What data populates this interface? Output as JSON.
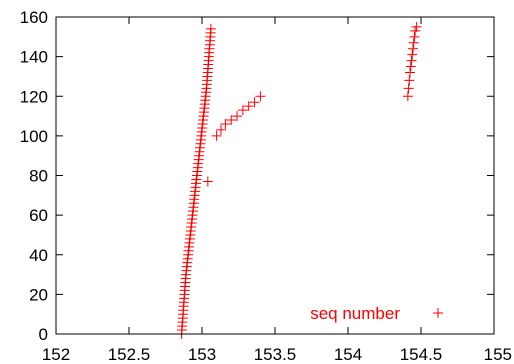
{
  "chart_data": {
    "type": "scatter",
    "title": "",
    "xlabel": "",
    "ylabel": "",
    "xlim": [
      152,
      155
    ],
    "ylim": [
      0,
      160
    ],
    "xticks": [
      "152",
      "152.5",
      "153",
      "153.5",
      "154",
      "154.5",
      "155"
    ],
    "yticks": [
      "0",
      "20",
      "40",
      "60",
      "80",
      "100",
      "120",
      "140",
      "160"
    ],
    "grid": false,
    "legend_position": "bottom-right",
    "series": [
      {
        "name": "seq number",
        "color": "#ff0000",
        "marker": "plus",
        "points": [
          [
            152.86,
            0
          ],
          [
            152.862,
            2
          ],
          [
            152.864,
            4
          ],
          [
            152.866,
            6
          ],
          [
            152.868,
            8
          ],
          [
            152.87,
            10
          ],
          [
            152.872,
            12
          ],
          [
            152.874,
            14
          ],
          [
            152.876,
            16
          ],
          [
            152.878,
            18
          ],
          [
            152.88,
            20
          ],
          [
            152.882,
            22
          ],
          [
            152.884,
            24
          ],
          [
            152.886,
            26
          ],
          [
            152.888,
            28
          ],
          [
            152.89,
            30
          ],
          [
            152.893,
            32
          ],
          [
            152.896,
            34
          ],
          [
            152.899,
            36
          ],
          [
            152.902,
            38
          ],
          [
            152.905,
            40
          ],
          [
            152.908,
            42
          ],
          [
            152.911,
            44
          ],
          [
            152.914,
            46
          ],
          [
            152.917,
            48
          ],
          [
            152.92,
            50
          ],
          [
            152.923,
            52
          ],
          [
            152.926,
            54
          ],
          [
            152.929,
            56
          ],
          [
            152.932,
            58
          ],
          [
            152.935,
            60
          ],
          [
            152.938,
            62
          ],
          [
            152.941,
            64
          ],
          [
            152.944,
            66
          ],
          [
            152.947,
            68
          ],
          [
            152.95,
            70
          ],
          [
            152.953,
            72
          ],
          [
            152.956,
            74
          ],
          [
            152.959,
            76
          ],
          [
            152.962,
            78
          ],
          [
            152.965,
            80
          ],
          [
            152.968,
            82
          ],
          [
            152.971,
            84
          ],
          [
            152.974,
            86
          ],
          [
            152.977,
            88
          ],
          [
            152.98,
            90
          ],
          [
            152.983,
            92
          ],
          [
            152.986,
            94
          ],
          [
            152.989,
            96
          ],
          [
            152.992,
            98
          ],
          [
            152.995,
            100
          ],
          [
            152.998,
            102
          ],
          [
            153.001,
            104
          ],
          [
            153.004,
            106
          ],
          [
            153.007,
            108
          ],
          [
            153.01,
            110
          ],
          [
            153.013,
            112
          ],
          [
            153.016,
            114
          ],
          [
            153.019,
            116
          ],
          [
            153.022,
            118
          ],
          [
            153.025,
            120
          ],
          [
            153.028,
            122
          ],
          [
            153.031,
            124
          ],
          [
            153.033,
            126
          ],
          [
            153.035,
            128
          ],
          [
            153.037,
            130
          ],
          [
            153.039,
            132
          ],
          [
            153.041,
            134
          ],
          [
            153.043,
            136
          ],
          [
            153.045,
            138
          ],
          [
            153.047,
            140
          ],
          [
            153.049,
            142
          ],
          [
            153.051,
            144
          ],
          [
            153.053,
            146
          ],
          [
            153.055,
            148
          ],
          [
            153.057,
            150
          ],
          [
            153.059,
            152
          ],
          [
            153.061,
            154
          ],
          [
            153.04,
            77
          ],
          [
            153.1,
            100
          ],
          [
            153.13,
            103
          ],
          [
            153.16,
            106
          ],
          [
            153.2,
            108
          ],
          [
            153.24,
            110
          ],
          [
            153.28,
            113
          ],
          [
            153.32,
            115
          ],
          [
            153.36,
            117
          ],
          [
            153.4,
            120
          ],
          [
            154.41,
            120
          ],
          [
            154.415,
            124
          ],
          [
            154.42,
            128
          ],
          [
            154.425,
            132
          ],
          [
            154.43,
            135
          ],
          [
            154.435,
            138
          ],
          [
            154.44,
            141
          ],
          [
            154.445,
            144
          ],
          [
            154.45,
            147
          ],
          [
            154.455,
            150
          ],
          [
            154.46,
            153
          ],
          [
            154.47,
            155
          ]
        ]
      }
    ]
  }
}
